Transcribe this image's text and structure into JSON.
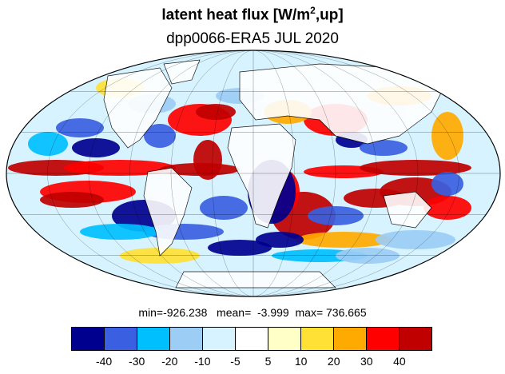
{
  "title": {
    "main": "latent heat flux [W/m",
    "sup": "2",
    "tail": ",up]"
  },
  "subtitle": "dpp0066-ERA5  JUL 2020",
  "stats": {
    "min": "min=-926.238",
    "mean": "mean=  -3.999",
    "max": "max= 736.665"
  },
  "colorbar": {
    "colors": [
      "#00008f",
      "#3a5fe0",
      "#00bfff",
      "#9ccdf5",
      "#d6f3ff",
      "#ffffff",
      "#ffffc8",
      "#ffe135",
      "#ffaa00",
      "#ff0000",
      "#c00000"
    ],
    "ticks": [
      "-40",
      "-30",
      "-20",
      "-10",
      "-5",
      "5",
      "10",
      "20",
      "30",
      "40"
    ]
  },
  "map": {
    "projection": "Mollweide",
    "gridlines": "every 30 degrees"
  }
}
